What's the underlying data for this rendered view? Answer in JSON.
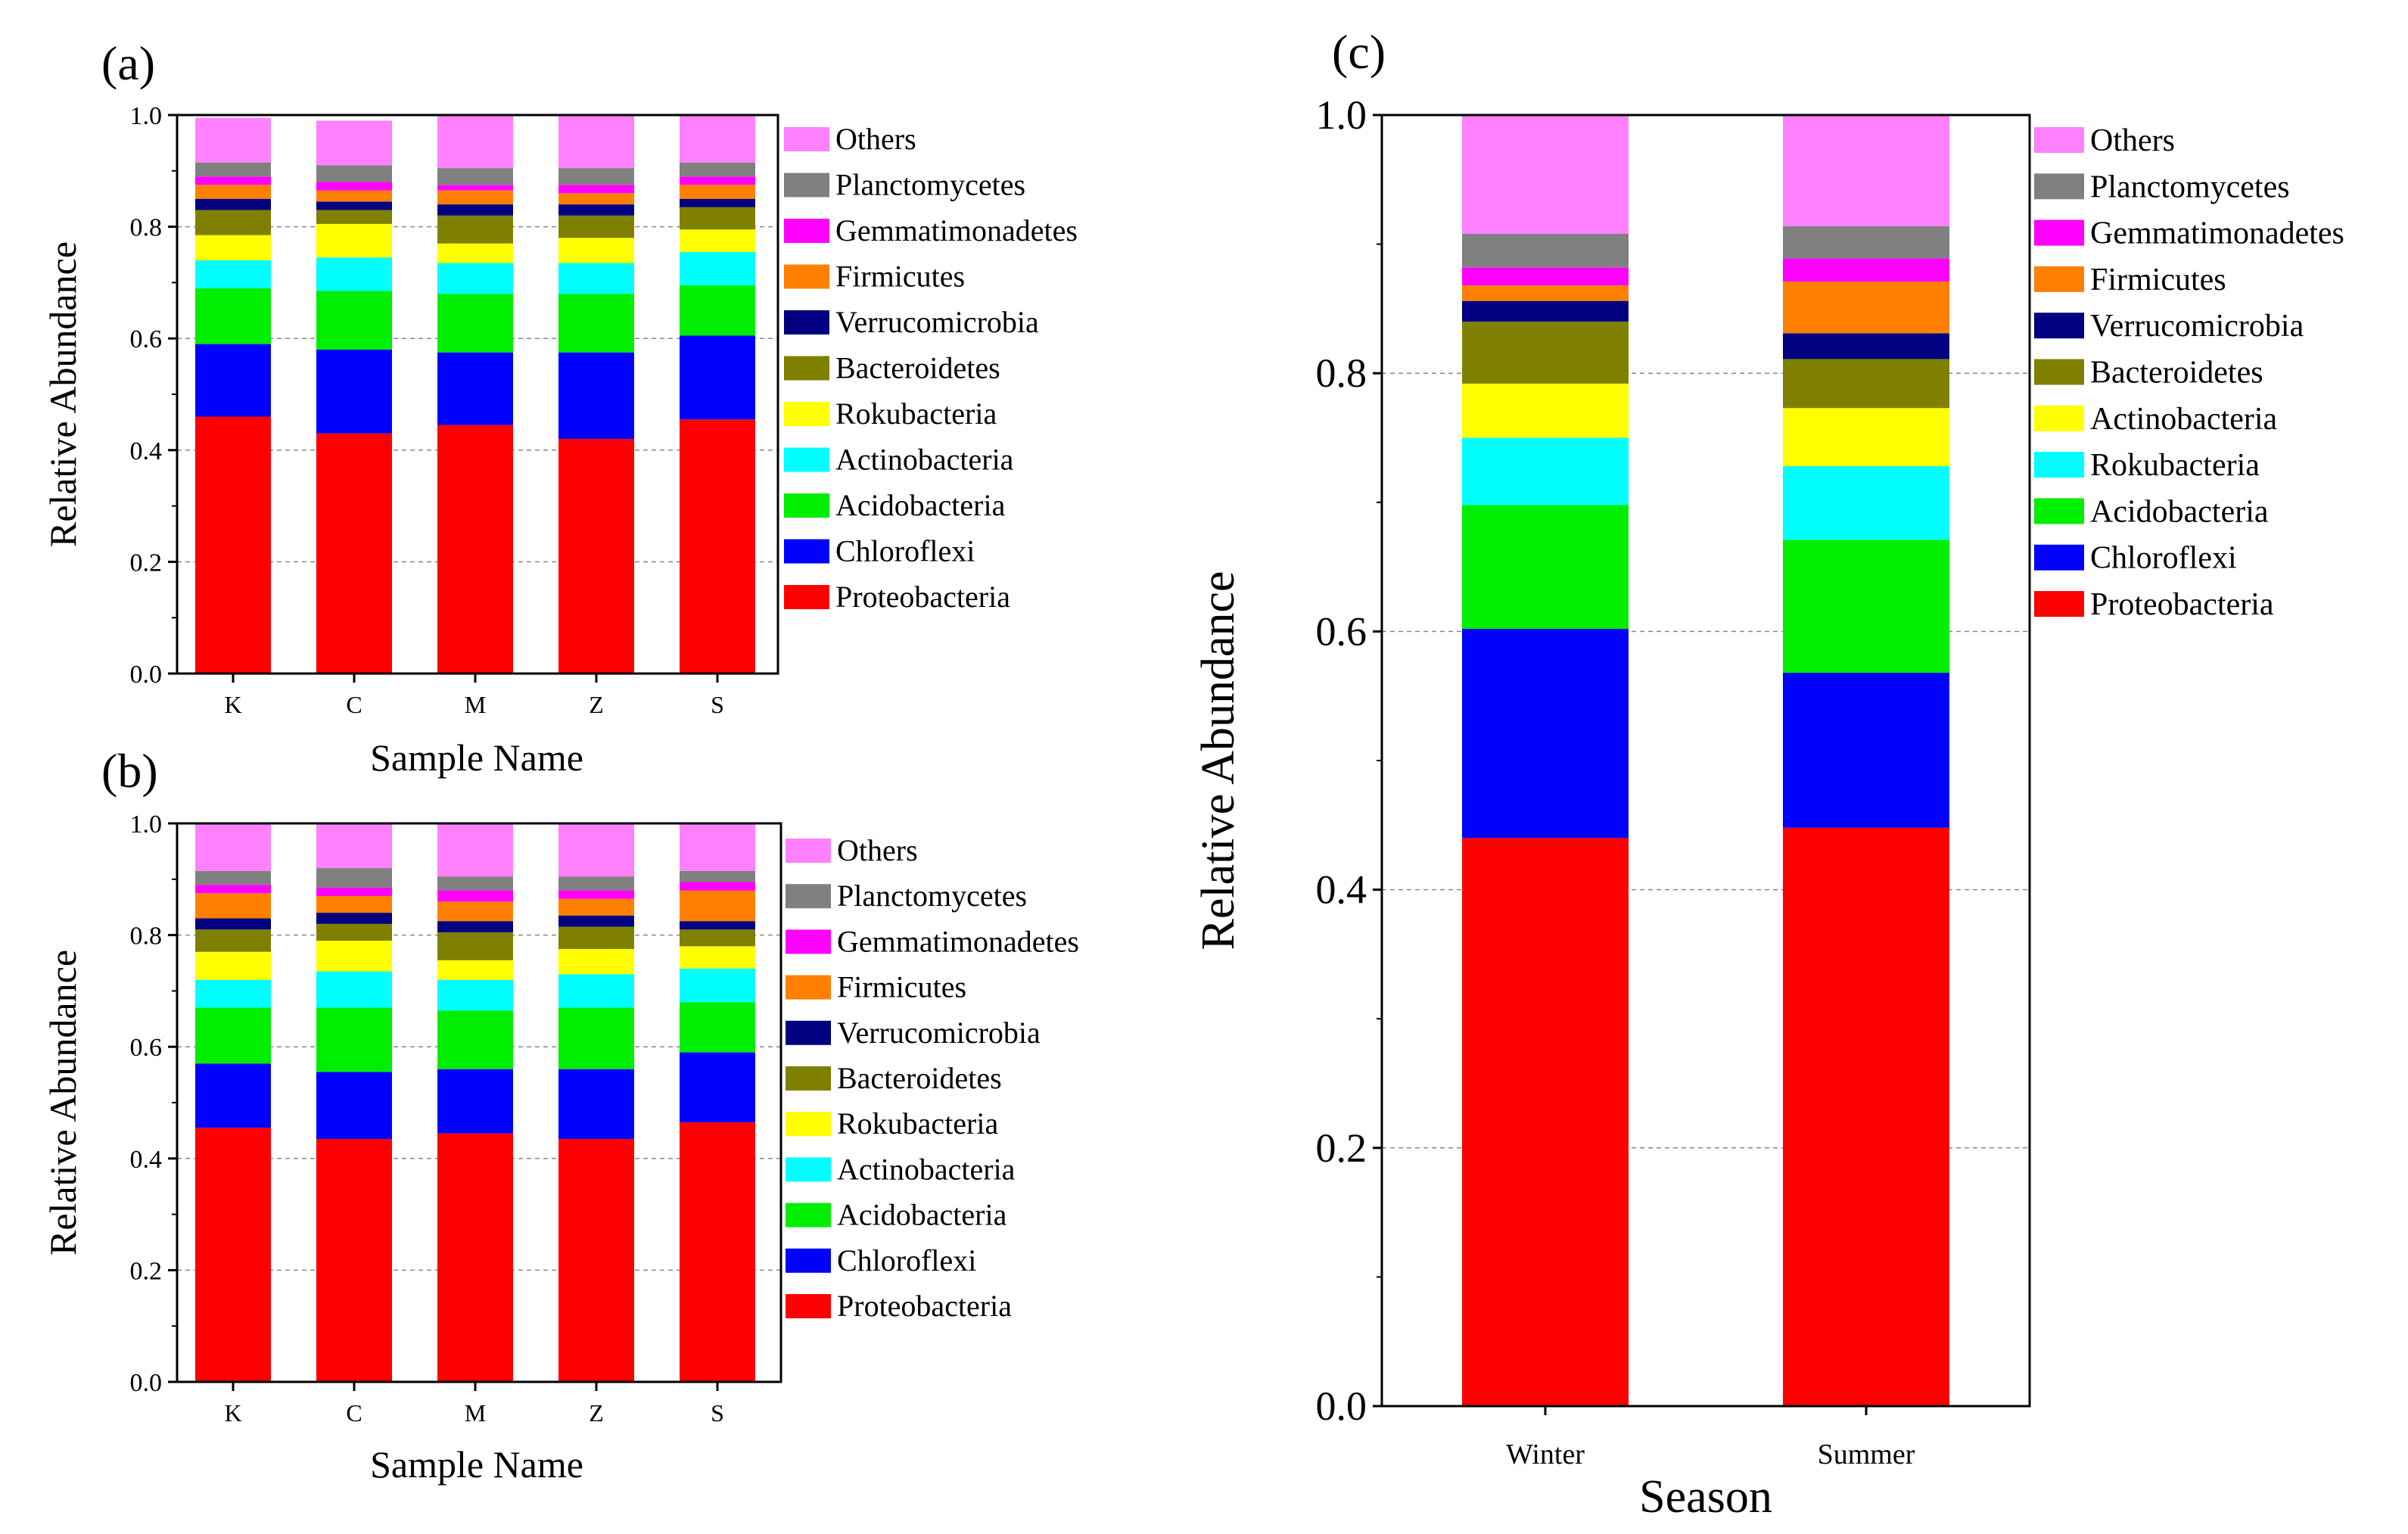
{
  "chart_data": [
    {
      "panel": "(a)",
      "type": "bar",
      "stacked": true,
      "xlabel": "Sample Name",
      "ylabel": "Relative Abundance",
      "ylim": [
        0,
        1.0
      ],
      "yticks": [
        "0.0",
        "0.2",
        "0.4",
        "0.6",
        "0.8",
        "1.0"
      ],
      "categories": [
        "K",
        "C",
        "M",
        "Z",
        "S"
      ],
      "grid": true,
      "legend_position": "right",
      "series": [
        {
          "name": "Proteobacteria",
          "color": "#ff0000",
          "values": [
            0.46,
            0.43,
            0.445,
            0.42,
            0.455
          ]
        },
        {
          "name": "Chloroflexi",
          "color": "#0000ff",
          "values": [
            0.13,
            0.15,
            0.13,
            0.155,
            0.15
          ]
        },
        {
          "name": "Acidobacteria",
          "color": "#00ee00",
          "values": [
            0.1,
            0.105,
            0.105,
            0.105,
            0.09
          ]
        },
        {
          "name": "Actinobacteria",
          "color": "#00ffff",
          "values": [
            0.05,
            0.06,
            0.055,
            0.055,
            0.06
          ]
        },
        {
          "name": "Rokubacteria",
          "color": "#ffff00",
          "values": [
            0.045,
            0.06,
            0.035,
            0.045,
            0.04
          ]
        },
        {
          "name": "Bacteroidetes",
          "color": "#808000",
          "values": [
            0.045,
            0.025,
            0.05,
            0.04,
            0.04
          ]
        },
        {
          "name": "Verrucomicrobia",
          "color": "#000080",
          "values": [
            0.02,
            0.015,
            0.02,
            0.02,
            0.015
          ]
        },
        {
          "name": "Firmicutes",
          "color": "#ff8000",
          "values": [
            0.025,
            0.02,
            0.025,
            0.02,
            0.025
          ]
        },
        {
          "name": "Gemmatimonadetes",
          "color": "#ff00ff",
          "values": [
            0.015,
            0.015,
            0.01,
            0.015,
            0.015
          ]
        },
        {
          "name": "Planctomycetes",
          "color": "#808080",
          "values": [
            0.025,
            0.03,
            0.03,
            0.03,
            0.025
          ]
        },
        {
          "name": "Others",
          "color": "#ff80ff",
          "values": [
            0.08,
            0.08,
            0.095,
            0.095,
            0.085
          ]
        }
      ]
    },
    {
      "panel": "(b)",
      "type": "bar",
      "stacked": true,
      "xlabel": "Sample Name",
      "ylabel": "Relative Abundance",
      "ylim": [
        0,
        1.0
      ],
      "yticks": [
        "0.0",
        "0.2",
        "0.4",
        "0.6",
        "0.8",
        "1.0"
      ],
      "categories": [
        "K",
        "C",
        "M",
        "Z",
        "S"
      ],
      "grid": true,
      "legend_position": "right",
      "series": [
        {
          "name": "Proteobacteria",
          "color": "#ff0000",
          "values": [
            0.455,
            0.435,
            0.445,
            0.435,
            0.465
          ]
        },
        {
          "name": "Chloroflexi",
          "color": "#0000ff",
          "values": [
            0.115,
            0.12,
            0.115,
            0.125,
            0.125
          ]
        },
        {
          "name": "Acidobacteria",
          "color": "#00ee00",
          "values": [
            0.1,
            0.115,
            0.105,
            0.11,
            0.09
          ]
        },
        {
          "name": "Actinobacteria",
          "color": "#00ffff",
          "values": [
            0.05,
            0.065,
            0.055,
            0.06,
            0.06
          ]
        },
        {
          "name": "Rokubacteria",
          "color": "#ffff00",
          "values": [
            0.05,
            0.055,
            0.035,
            0.045,
            0.04
          ]
        },
        {
          "name": "Bacteroidetes",
          "color": "#808000",
          "values": [
            0.04,
            0.03,
            0.05,
            0.04,
            0.03
          ]
        },
        {
          "name": "Verrucomicrobia",
          "color": "#000080",
          "values": [
            0.02,
            0.02,
            0.02,
            0.02,
            0.015
          ]
        },
        {
          "name": "Firmicutes",
          "color": "#ff8000",
          "values": [
            0.045,
            0.03,
            0.035,
            0.03,
            0.055
          ]
        },
        {
          "name": "Gemmatimonadetes",
          "color": "#ff00ff",
          "values": [
            0.015,
            0.015,
            0.02,
            0.015,
            0.015
          ]
        },
        {
          "name": "Planctomycetes",
          "color": "#808080",
          "values": [
            0.025,
            0.035,
            0.025,
            0.025,
            0.02
          ]
        },
        {
          "name": "Others",
          "color": "#ff80ff",
          "values": [
            0.085,
            0.08,
            0.095,
            0.095,
            0.085
          ]
        }
      ]
    },
    {
      "panel": "(c)",
      "type": "bar",
      "stacked": true,
      "xlabel": "Season",
      "ylabel": "Relative Abundance",
      "ylim": [
        0,
        1.0
      ],
      "yticks": [
        "0.0",
        "0.2",
        "0.4",
        "0.6",
        "0.8",
        "1.0"
      ],
      "categories": [
        "Winter",
        "Summer"
      ],
      "grid": true,
      "legend_position": "right",
      "series": [
        {
          "name": "Proteobacteria",
          "color": "#ff0000",
          "values": [
            0.44,
            0.448
          ]
        },
        {
          "name": "Chloroflexi",
          "color": "#0000ff",
          "values": [
            0.162,
            0.12
          ]
        },
        {
          "name": "Acidobacteria",
          "color": "#00ee00",
          "values": [
            0.096,
            0.103
          ]
        },
        {
          "name": "Rokubacteria",
          "color": "#00ffff",
          "values": [
            0.052,
            0.057
          ]
        },
        {
          "name": "Actinobacteria",
          "color": "#ffff00",
          "values": [
            0.042,
            0.045
          ]
        },
        {
          "name": "Bacteroidetes",
          "color": "#808000",
          "values": [
            0.048,
            0.038
          ]
        },
        {
          "name": "Verrucomicrobia",
          "color": "#000080",
          "values": [
            0.016,
            0.02
          ]
        },
        {
          "name": "Firmicutes",
          "color": "#ff8000",
          "values": [
            0.012,
            0.04
          ]
        },
        {
          "name": "Gemmatimonadetes",
          "color": "#ff00ff",
          "values": [
            0.014,
            0.018
          ]
        },
        {
          "name": "Planctomycetes",
          "color": "#808080",
          "values": [
            0.026,
            0.025
          ]
        },
        {
          "name": "Others",
          "color": "#ff80ff",
          "values": [
            0.092,
            0.086
          ]
        }
      ]
    }
  ]
}
